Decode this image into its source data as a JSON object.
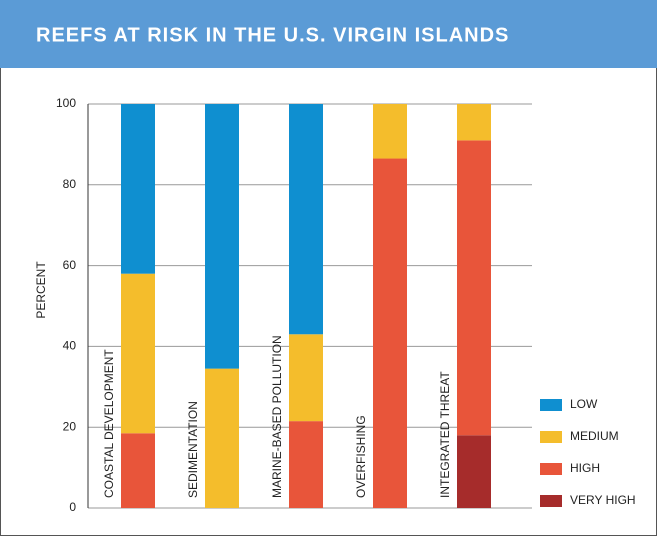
{
  "chart_data": {
    "type": "stacked_bar",
    "title": "REEFS AT RISK IN THE U.S. VIRGIN ISLANDS",
    "ylabel": "PERCENT",
    "categories": [
      "COASTAL DEVELOPMENT",
      "SEDIMENTATION",
      "MARINE-BASED POLLUTION",
      "OVERFISHING",
      "INTEGRATED THREAT"
    ],
    "series": [
      {
        "name": "LOW",
        "color": "#0f8fd0",
        "values": [
          42,
          65.5,
          57,
          0,
          0
        ]
      },
      {
        "name": "MEDIUM",
        "color": "#f4bd2c",
        "values": [
          39.5,
          34.5,
          21.5,
          13.5,
          9
        ]
      },
      {
        "name": "HIGH",
        "color": "#e8553a",
        "values": [
          18.5,
          0,
          21.5,
          86.5,
          73
        ]
      },
      {
        "name": "VERY HIGH",
        "color": "#a62c2b",
        "values": [
          0,
          0,
          0,
          0,
          18
        ]
      }
    ],
    "ylim": [
      0,
      100
    ],
    "yticks": [
      0,
      20,
      40,
      60,
      80,
      100
    ],
    "grid": true,
    "legend": "lower right"
  }
}
